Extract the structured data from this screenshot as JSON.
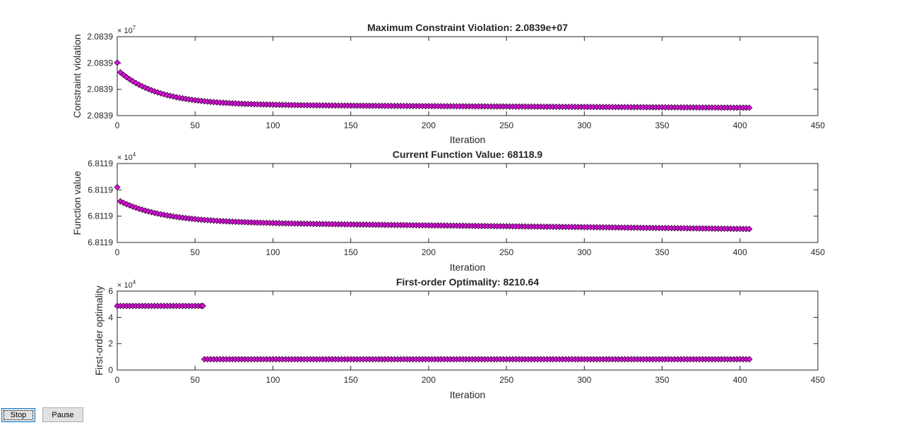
{
  "colors": {
    "marker_fill": "#e010e0",
    "marker_edge": "#300030",
    "axes": "#262626",
    "background": "#ffffff"
  },
  "buttons": {
    "stop": "Stop",
    "pause": "Pause"
  },
  "chart_data": [
    {
      "type": "scatter",
      "title": "Maximum Constraint Violation: 2.0839e+07",
      "xlabel": "Iteration",
      "ylabel": "Constraint violation",
      "exponent": {
        "base": "× 10",
        "power": "7"
      },
      "xlim": [
        0,
        450
      ],
      "xticks": [
        "0",
        "50",
        "100",
        "150",
        "200",
        "250",
        "300",
        "350",
        "400",
        "450"
      ],
      "ylim": [
        0,
        1
      ],
      "yticks": [
        {
          "v": 0.0,
          "label": "2.0839"
        },
        {
          "v": 0.333,
          "label": "2.0839"
        },
        {
          "v": 0.667,
          "label": "2.0839"
        },
        {
          "v": 1.0,
          "label": "2.0839"
        }
      ],
      "curve": {
        "kind": "decay",
        "x_end": 406,
        "start": 0.67,
        "tail": 0.14,
        "decay_amp": 0.52,
        "tau": 25,
        "slope": 0.0001
      },
      "grid": false
    },
    {
      "type": "scatter",
      "title": "Current Function Value: 68118.9",
      "xlabel": "Iteration",
      "ylabel": "Function value",
      "exponent": {
        "base": "× 10",
        "power": "4"
      },
      "xlim": [
        0,
        450
      ],
      "xticks": [
        "0",
        "50",
        "100",
        "150",
        "200",
        "250",
        "300",
        "350",
        "400",
        "450"
      ],
      "ylim": [
        0,
        1
      ],
      "yticks": [
        {
          "v": 0.0,
          "label": "6.8119"
        },
        {
          "v": 0.333,
          "label": "6.8119"
        },
        {
          "v": 0.667,
          "label": "6.8119"
        },
        {
          "v": 1.0,
          "label": "6.8119"
        }
      ],
      "curve": {
        "kind": "decay",
        "x_end": 406,
        "start": 0.7,
        "tail": 0.26,
        "decay_amp": 0.33,
        "tau": 28,
        "slope": 0.00022
      },
      "grid": false
    },
    {
      "type": "scatter",
      "title": "First-order Optimality: 8210.64",
      "xlabel": "Iteration",
      "ylabel": "First-order optimality",
      "exponent": {
        "base": "× 10",
        "power": "4"
      },
      "xlim": [
        0,
        450
      ],
      "xticks": [
        "0",
        "50",
        "100",
        "150",
        "200",
        "250",
        "300",
        "350",
        "400",
        "450"
      ],
      "ylim": [
        0,
        6
      ],
      "yticks": [
        {
          "v": 0,
          "label": "0"
        },
        {
          "v": 2,
          "label": "2"
        },
        {
          "v": 4,
          "label": "4"
        },
        {
          "v": 6,
          "label": "6"
        }
      ],
      "curve": {
        "kind": "step",
        "x_end": 406,
        "step_at": 55,
        "before": 4.87,
        "after": 0.821
      },
      "grid": false
    }
  ]
}
